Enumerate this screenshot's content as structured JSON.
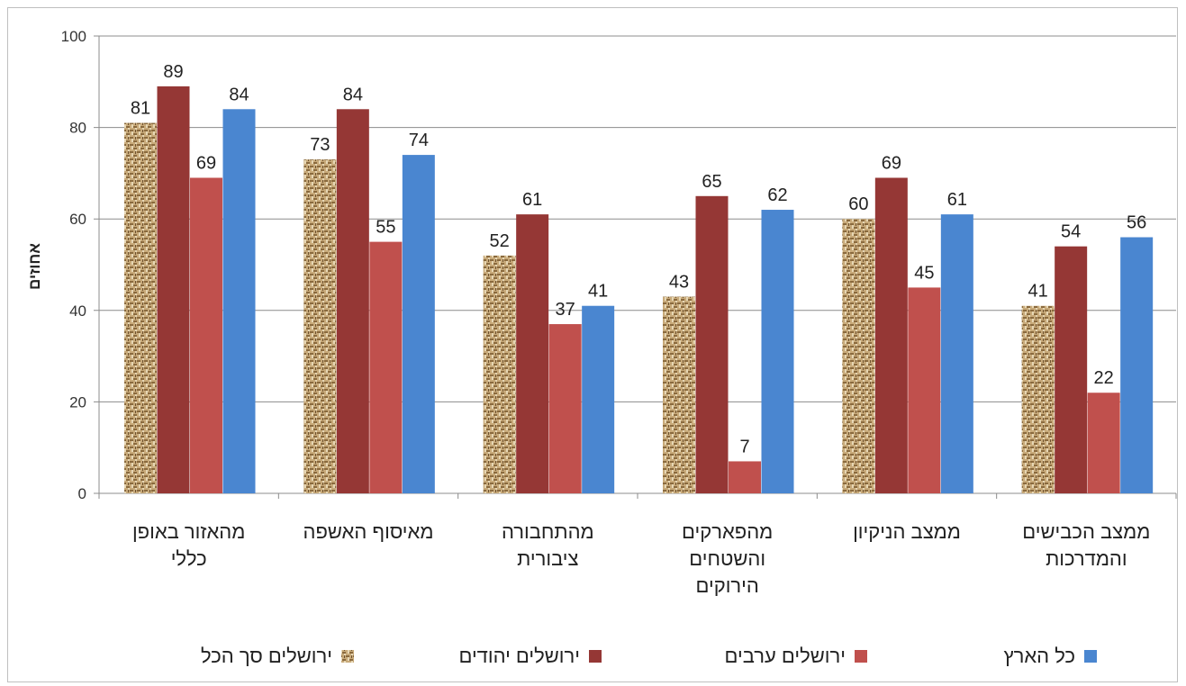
{
  "chart_data": {
    "type": "bar",
    "ylabel": "אחוזים",
    "ylim": [
      0,
      100
    ],
    "yticks": [
      0,
      20,
      40,
      60,
      80,
      100
    ],
    "grid": true,
    "legend_position": "bottom",
    "categories": [
      [
        "מהאזור באופן",
        "כללי"
      ],
      [
        "מאיסוף האשפה"
      ],
      [
        "מהתחבורה",
        "ציבורית"
      ],
      [
        "מהפארקים",
        "והשטחים",
        "הירוקים"
      ],
      [
        "ממצב הניקיון"
      ],
      [
        "ממצב הכבישים",
        "והמדרכות"
      ]
    ],
    "series": [
      {
        "name": "ירושלים  סך הכל",
        "color": "#b8986a",
        "pattern": "burlap",
        "values": [
          81,
          73,
          52,
          43,
          60,
          41
        ]
      },
      {
        "name": "ירושלים   יהודים",
        "color": "#953735",
        "values": [
          89,
          84,
          61,
          65,
          69,
          54
        ]
      },
      {
        "name": "ירושלים  ערבים",
        "color": "#c0504d",
        "values": [
          69,
          55,
          37,
          7,
          45,
          22
        ]
      },
      {
        "name": "כל הארץ",
        "color": "#4a86d0",
        "values": [
          84,
          74,
          41,
          62,
          61,
          56
        ]
      }
    ]
  }
}
